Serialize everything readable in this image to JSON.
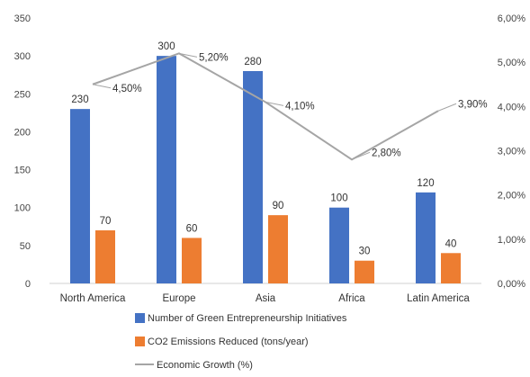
{
  "chart_data": {
    "type": "bar",
    "title": "",
    "categories": [
      "North America",
      "Europe",
      "Asia",
      "Africa",
      "Latin America"
    ],
    "series": [
      {
        "name": "Number of Green Entrepreneurship Initiatives",
        "type": "bar",
        "axis": "left",
        "color": "#4472C4",
        "values": [
          230,
          300,
          280,
          100,
          120
        ]
      },
      {
        "name": "CO2 Emissions Reduced (tons/year)",
        "type": "bar",
        "axis": "left",
        "color": "#ED7D31",
        "values": [
          70,
          60,
          90,
          30,
          40
        ]
      },
      {
        "name": "Economic Growth (%)",
        "type": "line",
        "axis": "right",
        "color": "#A5A5A5",
        "values": [
          4.5,
          5.2,
          4.1,
          2.8,
          3.9
        ]
      }
    ],
    "bar_labels": [
      [
        "230",
        "300",
        "280",
        "100",
        "120"
      ],
      [
        "70",
        "60",
        "90",
        "30",
        "40"
      ]
    ],
    "line_labels": [
      "4,50%",
      "5,20%",
      "4,10%",
      "2,80%",
      "3,90%"
    ],
    "y_left": {
      "min": 0,
      "max": 350,
      "ticks": [
        "0",
        "50",
        "100",
        "150",
        "200",
        "250",
        "300",
        "350"
      ]
    },
    "y_right": {
      "min": 0,
      "max": 6,
      "ticks": [
        "0,00%",
        "1,00%",
        "2,00%",
        "3,00%",
        "4,00%",
        "5,00%",
        "6,00%"
      ]
    },
    "grid": false,
    "legend_position": "bottom"
  }
}
